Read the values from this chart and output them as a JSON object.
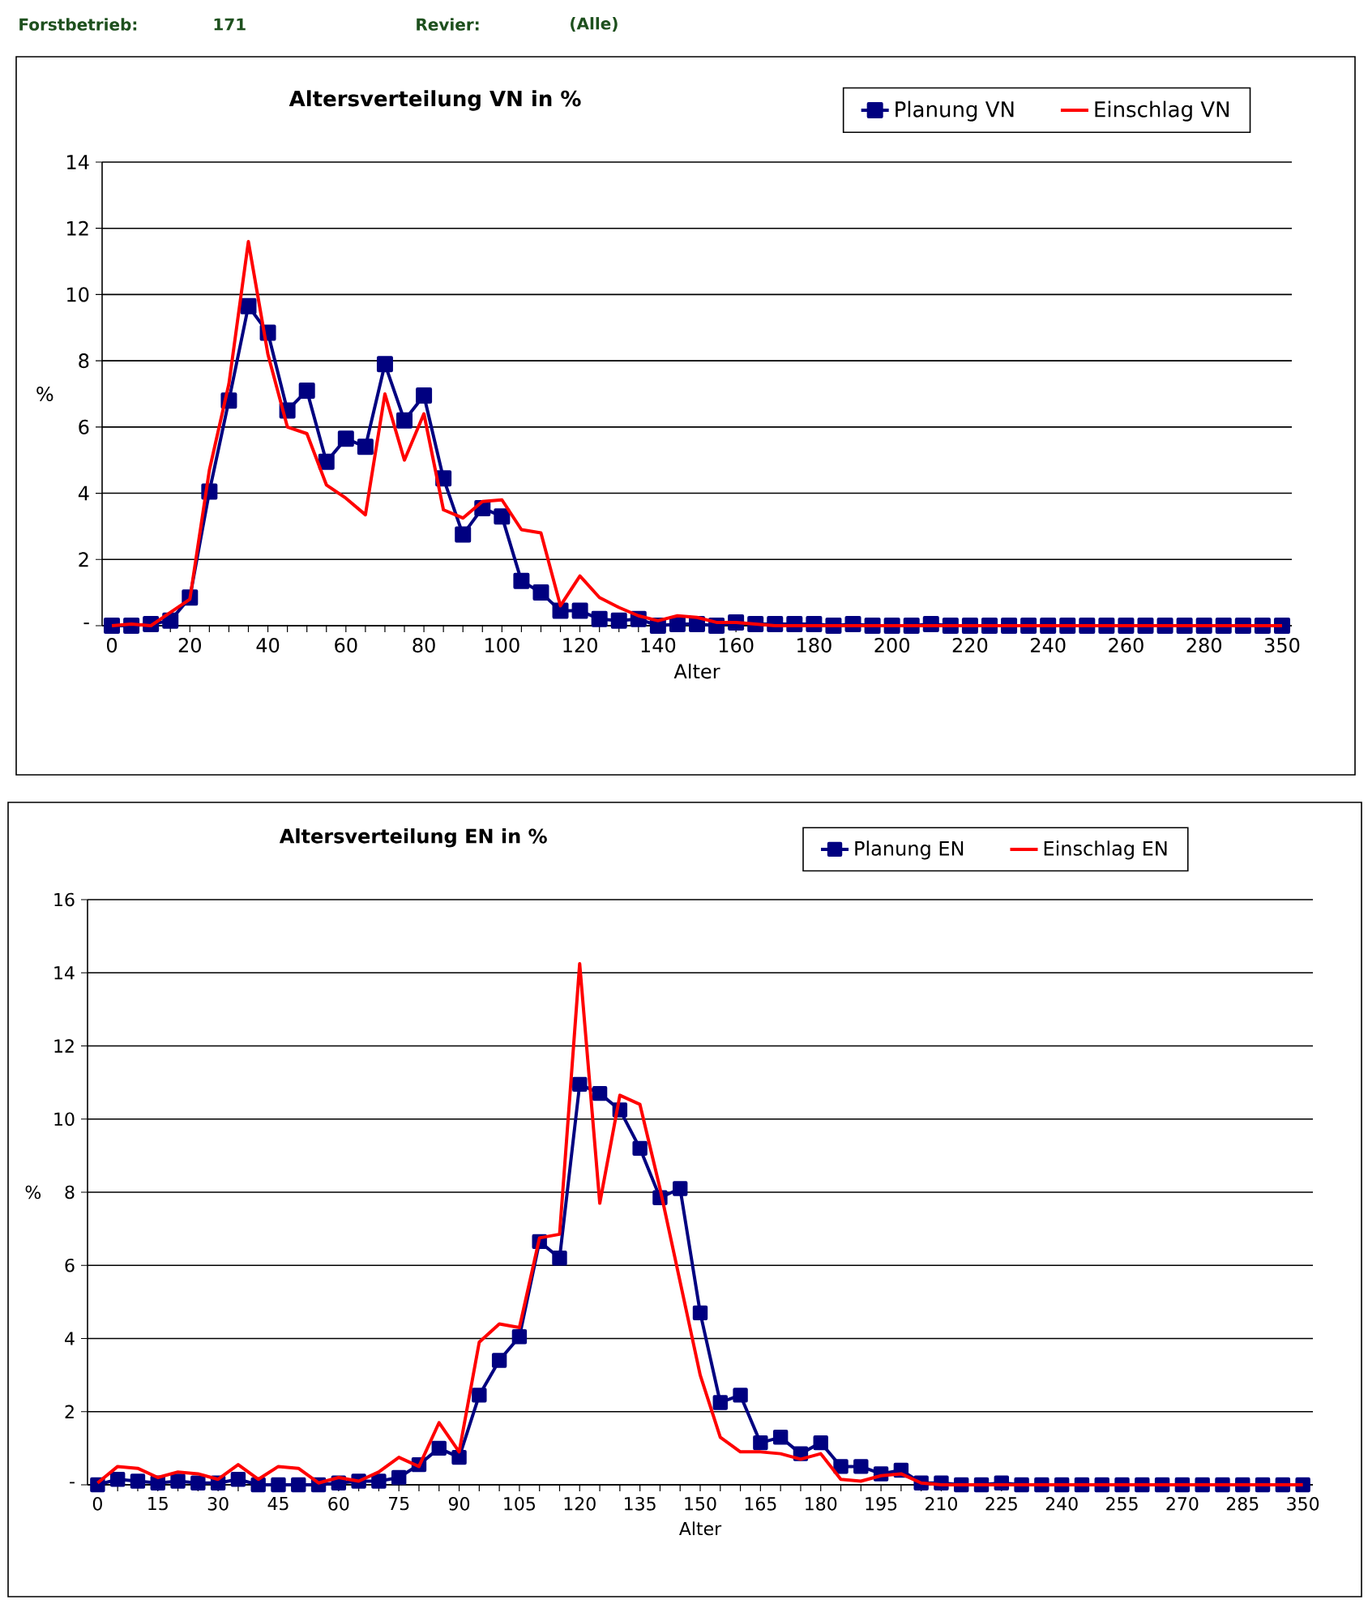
{
  "chart_data": [
    {
      "type": "line",
      "title": "Altersverteilung VN in %",
      "xlabel": "Alter",
      "ylabel": "%",
      "annotations": [
        "Forstbetrieb:",
        "171",
        "Revier:",
        "(Alle)"
      ],
      "categories": [
        "0",
        null,
        null,
        null,
        "20",
        null,
        null,
        null,
        "40",
        null,
        null,
        null,
        "60",
        null,
        null,
        null,
        "80",
        null,
        null,
        null,
        "100",
        null,
        null,
        null,
        "120",
        null,
        null,
        null,
        "140",
        null,
        null,
        null,
        "160",
        null,
        null,
        null,
        "180",
        null,
        null,
        null,
        "200",
        null,
        null,
        null,
        "220",
        null,
        null,
        null,
        "240",
        null,
        null,
        null,
        "260",
        null,
        null,
        null,
        "280",
        null,
        null,
        null,
        "350"
      ],
      "series": [
        {
          "name": "Planung VN",
          "color": "#000080",
          "marker": "square",
          "values": [
            0,
            0,
            0.05,
            0.15,
            0.85,
            4.05,
            6.8,
            9.65,
            8.85,
            6.5,
            7.1,
            4.95,
            5.65,
            5.4,
            7.9,
            6.2,
            6.95,
            4.45,
            2.75,
            3.55,
            3.3,
            1.35,
            1.0,
            0.45,
            0.45,
            0.2,
            0.15,
            0.2,
            0,
            0.05,
            0.05,
            0,
            0.1,
            0.05,
            0.05,
            0.05,
            0.05,
            0,
            0.05,
            0,
            0,
            0,
            0.05,
            0,
            0,
            0,
            0,
            0,
            0,
            0,
            0,
            0,
            0,
            0,
            0,
            0,
            0,
            0,
            0,
            0,
            0
          ]
        },
        {
          "name": "Einschlag VN",
          "color": "#ff0000",
          "marker": "none",
          "values": [
            0,
            0.05,
            0,
            0.4,
            0.8,
            4.7,
            7.3,
            11.6,
            8.2,
            6.0,
            5.8,
            4.25,
            3.85,
            3.35,
            7.0,
            5.0,
            6.4,
            3.5,
            3.25,
            3.75,
            3.8,
            2.9,
            2.8,
            0.6,
            1.5,
            0.85,
            0.55,
            0.3,
            0.15,
            0.3,
            0.25,
            0.1,
            0.1,
            0.05,
            0,
            0,
            0,
            0,
            0,
            0,
            0,
            0,
            0,
            0,
            0,
            0,
            0,
            0,
            0,
            0,
            0,
            0,
            0,
            0,
            0,
            0,
            0,
            0,
            0,
            0,
            0
          ]
        }
      ],
      "ylim": [
        0,
        14
      ],
      "yticks": [
        {
          "value": 0,
          "label": "-"
        },
        2,
        4,
        6,
        8,
        10,
        12,
        14
      ],
      "grid": "y",
      "legend": "top right"
    },
    {
      "type": "line",
      "title": "Altersverteilung EN in %",
      "xlabel": "Alter",
      "ylabel": "%",
      "categories": [
        "0",
        null,
        null,
        "15",
        null,
        null,
        "30",
        null,
        null,
        "45",
        null,
        null,
        "60",
        null,
        null,
        "75",
        null,
        null,
        "90",
        null,
        null,
        "105",
        null,
        null,
        "120",
        null,
        null,
        "135",
        null,
        null,
        "150",
        null,
        null,
        "165",
        null,
        null,
        "180",
        null,
        null,
        "195",
        null,
        null,
        "210",
        null,
        null,
        "225",
        null,
        null,
        "240",
        null,
        null,
        "255",
        null,
        null,
        "270",
        null,
        null,
        "285",
        null,
        null,
        "350"
      ],
      "series": [
        {
          "name": "Planung EN",
          "color": "#000080",
          "marker": "square",
          "values": [
            0,
            0.15,
            0.1,
            0.05,
            0.1,
            0.05,
            0.05,
            0.15,
            0,
            0,
            0,
            0,
            0.05,
            0.1,
            0.1,
            0.2,
            0.55,
            1.0,
            0.75,
            2.45,
            3.4,
            4.05,
            6.65,
            6.2,
            10.95,
            10.7,
            10.25,
            9.2,
            7.85,
            8.1,
            4.7,
            2.25,
            2.45,
            1.15,
            1.3,
            0.85,
            1.15,
            0.5,
            0.5,
            0.3,
            0.4,
            0.05,
            0.05,
            0,
            0,
            0.05,
            0,
            0,
            0,
            0,
            0,
            0,
            0,
            0,
            0,
            0,
            0,
            0,
            0,
            0,
            0
          ]
        },
        {
          "name": "Einschlag EN",
          "color": "#ff0000",
          "marker": "none",
          "values": [
            0.05,
            0.5,
            0.45,
            0.2,
            0.35,
            0.3,
            0.15,
            0.55,
            0.15,
            0.5,
            0.45,
            0.05,
            0.2,
            0.1,
            0.35,
            0.75,
            0.5,
            1.7,
            0.9,
            3.9,
            4.4,
            4.3,
            6.75,
            6.85,
            14.25,
            7.7,
            10.65,
            10.4,
            8.1,
            5.55,
            3.0,
            1.3,
            0.9,
            0.9,
            0.85,
            0.7,
            0.85,
            0.15,
            0.1,
            0.25,
            0.3,
            0.05,
            0,
            0,
            0,
            0,
            0,
            0,
            0,
            0,
            0,
            0,
            0,
            0,
            0,
            0,
            0,
            0,
            0,
            0,
            0
          ]
        }
      ],
      "ylim": [
        0,
        16
      ],
      "yticks": [
        {
          "value": 0,
          "label": "-"
        },
        2,
        4,
        6,
        8,
        10,
        12,
        14,
        16
      ],
      "grid": "y",
      "legend": "top right"
    }
  ]
}
